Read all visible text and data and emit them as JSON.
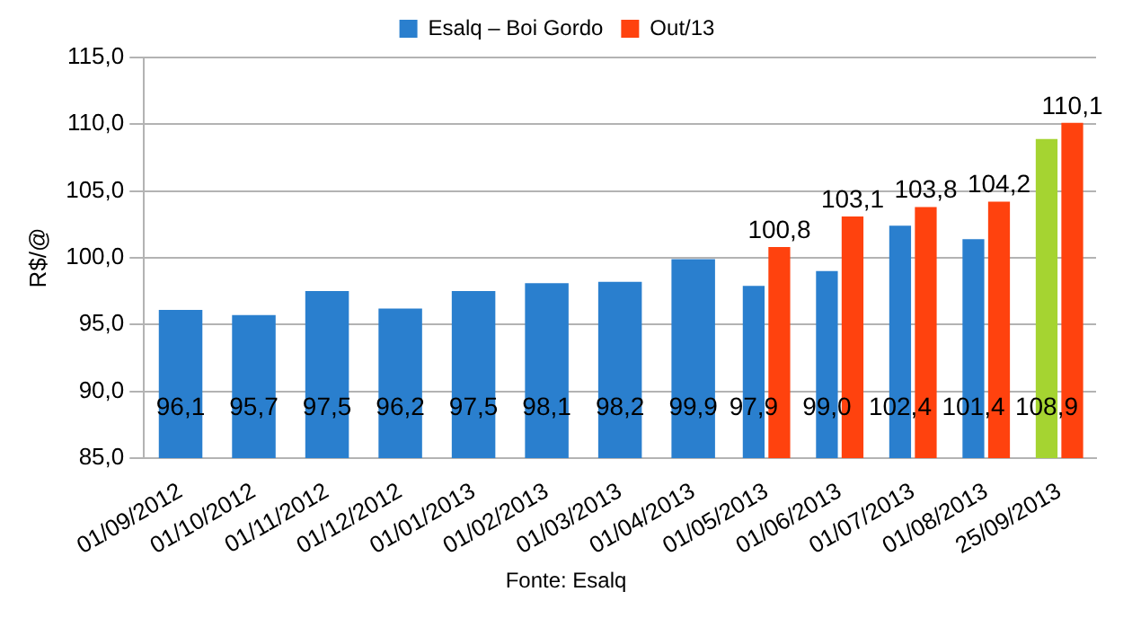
{
  "chart_data": {
    "type": "bar",
    "ylabel": "R$/@",
    "categories": [
      "01/09/2012",
      "01/10/2012",
      "01/11/2012",
      "01/12/2012",
      "01/01/2013",
      "01/02/2013",
      "01/03/2013",
      "01/04/2013",
      "01/05/2013",
      "01/06/2013",
      "01/07/2013",
      "01/08/2013",
      "25/09/2013"
    ],
    "series": [
      {
        "name": "Esalq – Boi Gordo",
        "color": "#2a7fce",
        "colors": [
          "#2a7fce",
          "#2a7fce",
          "#2a7fce",
          "#2a7fce",
          "#2a7fce",
          "#2a7fce",
          "#2a7fce",
          "#2a7fce",
          "#2a7fce",
          "#2a7fce",
          "#2a7fce",
          "#2a7fce",
          "#a5d431"
        ],
        "values": [
          96.1,
          95.7,
          97.5,
          96.2,
          97.5,
          98.1,
          98.2,
          99.9,
          97.9,
          99.0,
          102.4,
          101.4,
          108.9
        ],
        "value_labels": [
          "96,1",
          "95,7",
          "97,5",
          "96,2",
          "97,5",
          "98,1",
          "98,2",
          "99,9",
          "97,9",
          "99,0",
          "102,4",
          "101,4",
          "108,9"
        ]
      },
      {
        "name": "Out/13",
        "color": "#ff420e",
        "values": [
          null,
          null,
          null,
          null,
          null,
          null,
          null,
          null,
          100.8,
          103.1,
          103.8,
          104.2,
          110.1
        ],
        "value_labels": [
          null,
          null,
          null,
          null,
          null,
          null,
          null,
          null,
          "100,8",
          "103,1",
          "103,8",
          "104,2",
          "110,1"
        ]
      }
    ],
    "ylim": [
      85,
      115
    ],
    "yticks": [
      {
        "value": 85,
        "label": "85,0"
      },
      {
        "value": 90,
        "label": "90,0"
      },
      {
        "value": 95,
        "label": "95,0"
      },
      {
        "value": 100,
        "label": "100,0"
      },
      {
        "value": 105,
        "label": "105,0"
      },
      {
        "value": 110,
        "label": "110,0"
      },
      {
        "value": 115,
        "label": "115,0"
      }
    ],
    "grid": "y",
    "legend": "top",
    "annotations": [
      "Fonte: Esalq"
    ]
  }
}
